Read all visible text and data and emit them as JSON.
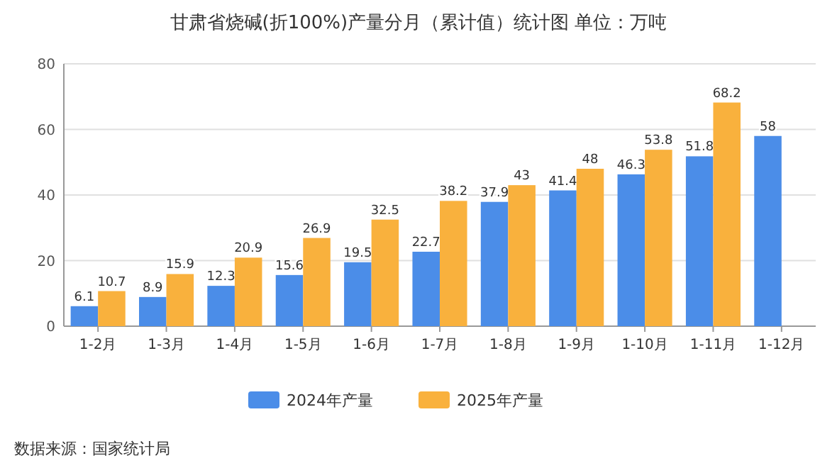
{
  "chart_data": {
    "type": "bar",
    "title": "甘肃省烧碱(折100%)产量分月（累计值）统计图 单位：万吨",
    "categories": [
      "1-2月",
      "1-3月",
      "1-4月",
      "1-5月",
      "1-6月",
      "1-7月",
      "1-8月",
      "1-9月",
      "1-10月",
      "1-11月",
      "1-12月"
    ],
    "series": [
      {
        "name": "2024年产量",
        "color": "#4b8de8",
        "values": [
          6.1,
          8.9,
          12.3,
          15.6,
          19.5,
          22.7,
          37.9,
          41.4,
          46.3,
          51.8,
          58
        ]
      },
      {
        "name": "2025年产量",
        "color": "#f9b13d",
        "values": [
          10.7,
          15.9,
          20.9,
          26.9,
          32.5,
          38.2,
          43,
          48,
          53.8,
          68.2,
          null
        ]
      }
    ],
    "ylim": [
      0,
      80
    ],
    "yticks": [
      0,
      20,
      40,
      60,
      80
    ],
    "grid": "y",
    "legend": "bottom",
    "data_labels": true,
    "annotations": [
      "数据来源：国家统计局"
    ]
  }
}
